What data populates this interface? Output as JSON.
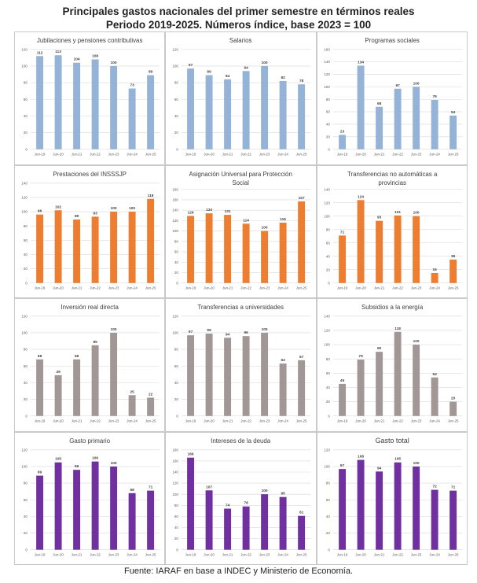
{
  "title": {
    "line1": "Principales gastos nacionales del primer semestre en términos reales",
    "line2": "Periodo 2019-2025. Números índice, base 2023 = 100"
  },
  "source": "Fuente: IARAF en base a INDEC y Ministerio de Economía.",
  "chart_data": [
    {
      "type": "bar",
      "title": "Jubilaciones y pensiones contributivas",
      "color": "#95b3d7",
      "categories": [
        "Jun-19",
        "Jun-20",
        "Jun-21",
        "Jun-22",
        "Jun-23",
        "Jun-24",
        "Jun-25"
      ],
      "values": [
        112,
        113,
        104,
        108,
        100,
        73,
        89
      ],
      "ylim": [
        0,
        120
      ],
      "yticks": [
        0,
        20,
        40,
        60,
        80,
        100,
        120
      ]
    },
    {
      "type": "bar",
      "title": "Salarios",
      "color": "#95b3d7",
      "categories": [
        "Jun-19",
        "Jun-20",
        "Jun-21",
        "Jun-22",
        "Jun-23",
        "Jun-24",
        "Jun-25"
      ],
      "values": [
        97,
        89,
        84,
        94,
        100,
        82,
        78
      ],
      "ylim": [
        0,
        120
      ],
      "yticks": [
        0,
        20,
        40,
        60,
        80,
        100,
        120
      ]
    },
    {
      "type": "bar",
      "title": "Programas sociales",
      "color": "#95b3d7",
      "categories": [
        "Jun-19",
        "Jun-20",
        "Jun-21",
        "Jun-22",
        "Jun-23",
        "Jun-24",
        "Jun-25"
      ],
      "values": [
        23,
        134,
        68,
        97,
        100,
        79,
        54
      ],
      "ylim": [
        0,
        160
      ],
      "yticks": [
        0,
        20,
        40,
        60,
        80,
        100,
        120,
        140,
        160
      ]
    },
    {
      "type": "bar",
      "title": "Prestaciones del INSSSJP",
      "color": "#ed7d31",
      "categories": [
        "Jun-19",
        "Jun-20",
        "Jun-21",
        "Jun-22",
        "Jun-23",
        "Jun-24",
        "Jun-25"
      ],
      "values": [
        96,
        102,
        89,
        93,
        100,
        100,
        118
      ],
      "ylim": [
        0,
        140
      ],
      "yticks": [
        0,
        20,
        40,
        60,
        80,
        100,
        120,
        140
      ]
    },
    {
      "type": "bar",
      "title": "Asignación Universal para Protección Social",
      "title_lines": [
        "Asignación Universal para Protección",
        "Social"
      ],
      "color": "#ed7d31",
      "categories": [
        "Jun-19",
        "Jun-20",
        "Jun-21",
        "Jun-22",
        "Jun-23",
        "Jun-24",
        "Jun-25"
      ],
      "values": [
        129,
        134,
        131,
        114,
        100,
        116,
        157
      ],
      "ylim": [
        0,
        180
      ],
      "yticks": [
        0,
        20,
        40,
        60,
        80,
        100,
        120,
        140,
        160,
        180
      ]
    },
    {
      "type": "bar",
      "title": "Transferencias no automáticas a provincias",
      "title_lines": [
        "Transferencias no automáticas a",
        "provincias"
      ],
      "color": "#ed7d31",
      "categories": [
        "Jun-19",
        "Jun-20",
        "Jun-21",
        "Jun-22",
        "Jun-23",
        "Jun-24",
        "Jun-25"
      ],
      "values": [
        71,
        124,
        93,
        101,
        100,
        15,
        35
      ],
      "ylim": [
        0,
        140
      ],
      "yticks": [
        0,
        20,
        40,
        60,
        80,
        100,
        120,
        140
      ]
    },
    {
      "type": "bar",
      "title": "Inversión real directa",
      "color": "#a09796",
      "categories": [
        "Jun-19",
        "Jun-20",
        "Jun-21",
        "Jun-22",
        "Jun-23",
        "Jun-24",
        "Jun-25"
      ],
      "values": [
        68,
        49,
        68,
        85,
        100,
        25,
        22
      ],
      "ylim": [
        0,
        120
      ],
      "yticks": [
        0,
        20,
        40,
        60,
        80,
        100,
        120
      ]
    },
    {
      "type": "bar",
      "title": "Transferencias a universidades",
      "color": "#a09796",
      "categories": [
        "Jun-19",
        "Jun-20",
        "Jun-21",
        "Jun-22",
        "Jun-23",
        "Jun-24",
        "Jun-25"
      ],
      "values": [
        97,
        99,
        94,
        96,
        100,
        63,
        67
      ],
      "ylim": [
        0,
        120
      ],
      "yticks": [
        0,
        20,
        40,
        60,
        80,
        100,
        120
      ]
    },
    {
      "type": "bar",
      "title": "Subsidios a la energía",
      "color": "#a09796",
      "categories": [
        "Jun-19",
        "Jun-20",
        "Jun-21",
        "Jun-22",
        "Jun-23",
        "Jun-24",
        "Jun-25"
      ],
      "values": [
        45,
        79,
        90,
        118,
        100,
        54,
        20
      ],
      "ylim": [
        0,
        140
      ],
      "yticks": [
        0,
        20,
        40,
        60,
        80,
        100,
        120,
        140
      ]
    },
    {
      "type": "bar",
      "title": "Gasto primario",
      "color": "#7030a0",
      "categories": [
        "Jun-19",
        "Jun-20",
        "Jun-21",
        "Jun-22",
        "Jun-23",
        "Jun-24",
        "Jun-25"
      ],
      "values": [
        89,
        105,
        96,
        106,
        100,
        68,
        71
      ],
      "ylim": [
        0,
        120
      ],
      "yticks": [
        0,
        20,
        40,
        60,
        80,
        100,
        120
      ]
    },
    {
      "type": "bar",
      "title": "Intereses de la deuda",
      "color": "#7030a0",
      "categories": [
        "Jun-19",
        "Jun-20",
        "Jun-21",
        "Jun-22",
        "Jun-23",
        "Jun-24",
        "Jun-25"
      ],
      "values": [
        166,
        107,
        74,
        78,
        100,
        95,
        61
      ],
      "ylim": [
        0,
        180
      ],
      "yticks": [
        0,
        20,
        40,
        60,
        80,
        100,
        120,
        140,
        160,
        180
      ]
    },
    {
      "type": "bar",
      "title": "Gasto total",
      "color": "#7030a0",
      "categories": [
        "Jun-19",
        "Jun-20",
        "Jun-21",
        "Jun-22",
        "Jun-23",
        "Jun-24",
        "Jun-25"
      ],
      "values": [
        97,
        108,
        94,
        105,
        100,
        72,
        71
      ],
      "ylim": [
        0,
        120
      ],
      "yticks": [
        0,
        20,
        40,
        60,
        80,
        100,
        120
      ]
    }
  ]
}
